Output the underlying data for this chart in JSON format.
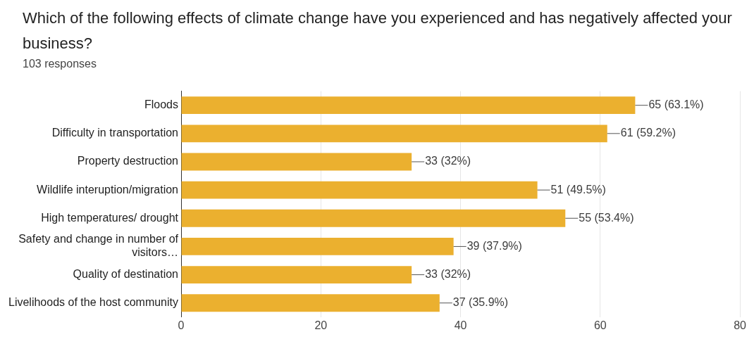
{
  "chart_data": {
    "type": "bar",
    "orientation": "horizontal",
    "title": "Which of the following effects of climate change have you experienced and has negatively affected your business?",
    "subtitle": "103 responses",
    "categories": [
      "Floods",
      "Difficulty in transportation",
      "Property destruction",
      "Wildlife interuption/migration",
      "High temperatures/ drought",
      "Safety and change in number of visitors…",
      "Quality of destination",
      "Livelihoods of the host community"
    ],
    "values": [
      65,
      61,
      33,
      51,
      55,
      39,
      33,
      37
    ],
    "value_labels": [
      "65 (63.1%)",
      "61 (59.2%)",
      "33 (32%)",
      "51 (49.5%)",
      "55 (53.4%)",
      "39 (37.9%)",
      "33 (32%)",
      "37 (35.9%)"
    ],
    "color": "#ebb02f",
    "xlim": [
      0,
      80
    ],
    "xticks": [
      0,
      20,
      40,
      60,
      80
    ],
    "grid": "x",
    "legend": false
  }
}
